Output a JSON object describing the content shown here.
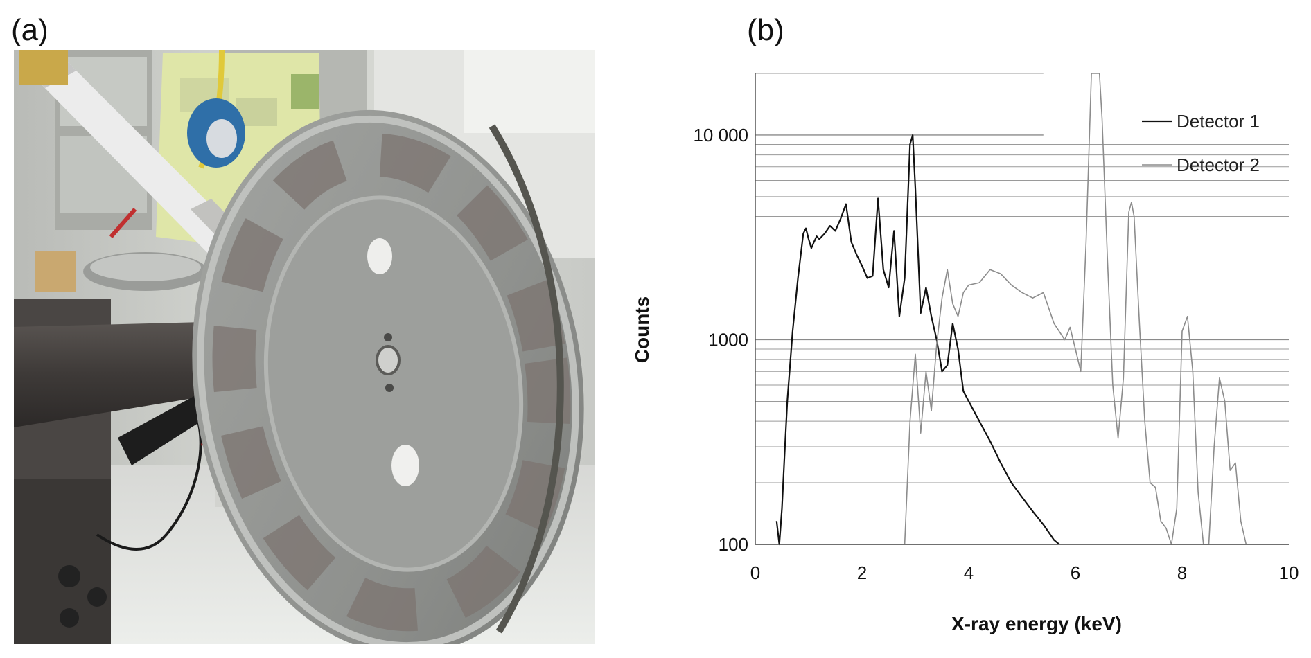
{
  "panels": {
    "a_label": "(a)",
    "b_label": "(b)"
  },
  "photo": {
    "subject": "photograph"
  },
  "chart_data": {
    "type": "line",
    "title": "",
    "xlabel": "X-ray energy (keV)",
    "ylabel": "Counts",
    "xlim": [
      0,
      10
    ],
    "ylim": [
      100,
      20000
    ],
    "yscale": "log",
    "x_ticks": [
      0,
      2,
      4,
      6,
      8,
      10
    ],
    "y_ticks": [
      100,
      1000,
      10000
    ],
    "y_tick_labels": [
      "100",
      "1000",
      "10 000"
    ],
    "grid": "horizontal",
    "legend_position": "top-right",
    "series": [
      {
        "name": "Detector 1",
        "color": "#111111",
        "x": [
          0.4,
          0.45,
          0.5,
          0.55,
          0.6,
          0.7,
          0.8,
          0.9,
          0.95,
          1.0,
          1.05,
          1.1,
          1.15,
          1.2,
          1.3,
          1.4,
          1.5,
          1.6,
          1.7,
          1.8,
          1.9,
          2.0,
          2.1,
          2.2,
          2.3,
          2.4,
          2.5,
          2.6,
          2.7,
          2.8,
          2.9,
          2.95,
          3.0,
          3.1,
          3.2,
          3.3,
          3.4,
          3.5,
          3.6,
          3.7,
          3.8,
          3.9,
          4.0,
          4.2,
          4.4,
          4.6,
          4.8,
          5.0,
          5.2,
          5.4,
          5.6,
          5.7
        ],
        "values": [
          130,
          100,
          150,
          280,
          500,
          1100,
          2000,
          3300,
          3500,
          3100,
          2800,
          3000,
          3200,
          3100,
          3300,
          3600,
          3400,
          3900,
          4600,
          3000,
          2600,
          2300,
          2000,
          2050,
          4900,
          2200,
          1800,
          3400,
          1300,
          2000,
          9000,
          10000,
          5500,
          1350,
          1800,
          1300,
          1000,
          700,
          750,
          1200,
          900,
          560,
          500,
          400,
          320,
          250,
          200,
          170,
          145,
          125,
          105,
          100
        ]
      },
      {
        "name": "Detector 2",
        "color": "#8c8c8c",
        "x": [
          2.8,
          2.9,
          3.0,
          3.1,
          3.2,
          3.3,
          3.4,
          3.5,
          3.6,
          3.7,
          3.8,
          3.9,
          4.0,
          4.2,
          4.4,
          4.6,
          4.8,
          5.0,
          5.2,
          5.4,
          5.6,
          5.8,
          5.9,
          6.0,
          6.1,
          6.2,
          6.3,
          6.4,
          6.45,
          6.5,
          6.6,
          6.7,
          6.8,
          6.9,
          7.0,
          7.05,
          7.1,
          7.2,
          7.3,
          7.4,
          7.5,
          7.6,
          7.7,
          7.8,
          7.9,
          8.0,
          8.1,
          8.2,
          8.3,
          8.4,
          8.5,
          8.6,
          8.7,
          8.8,
          8.9,
          9.0,
          9.1,
          9.2
        ],
        "values": [
          100,
          400,
          850,
          350,
          700,
          450,
          950,
          1600,
          2200,
          1500,
          1300,
          1700,
          1850,
          1900,
          2200,
          2100,
          1850,
          1700,
          1600,
          1700,
          1200,
          1000,
          1150,
          900,
          700,
          3000,
          20000,
          20000,
          20000,
          12000,
          2500,
          600,
          330,
          650,
          4200,
          4700,
          4000,
          1200,
          400,
          200,
          190,
          130,
          120,
          100,
          150,
          1100,
          1300,
          700,
          180,
          100,
          100,
          300,
          650,
          500,
          230,
          250,
          130,
          100
        ]
      }
    ]
  }
}
